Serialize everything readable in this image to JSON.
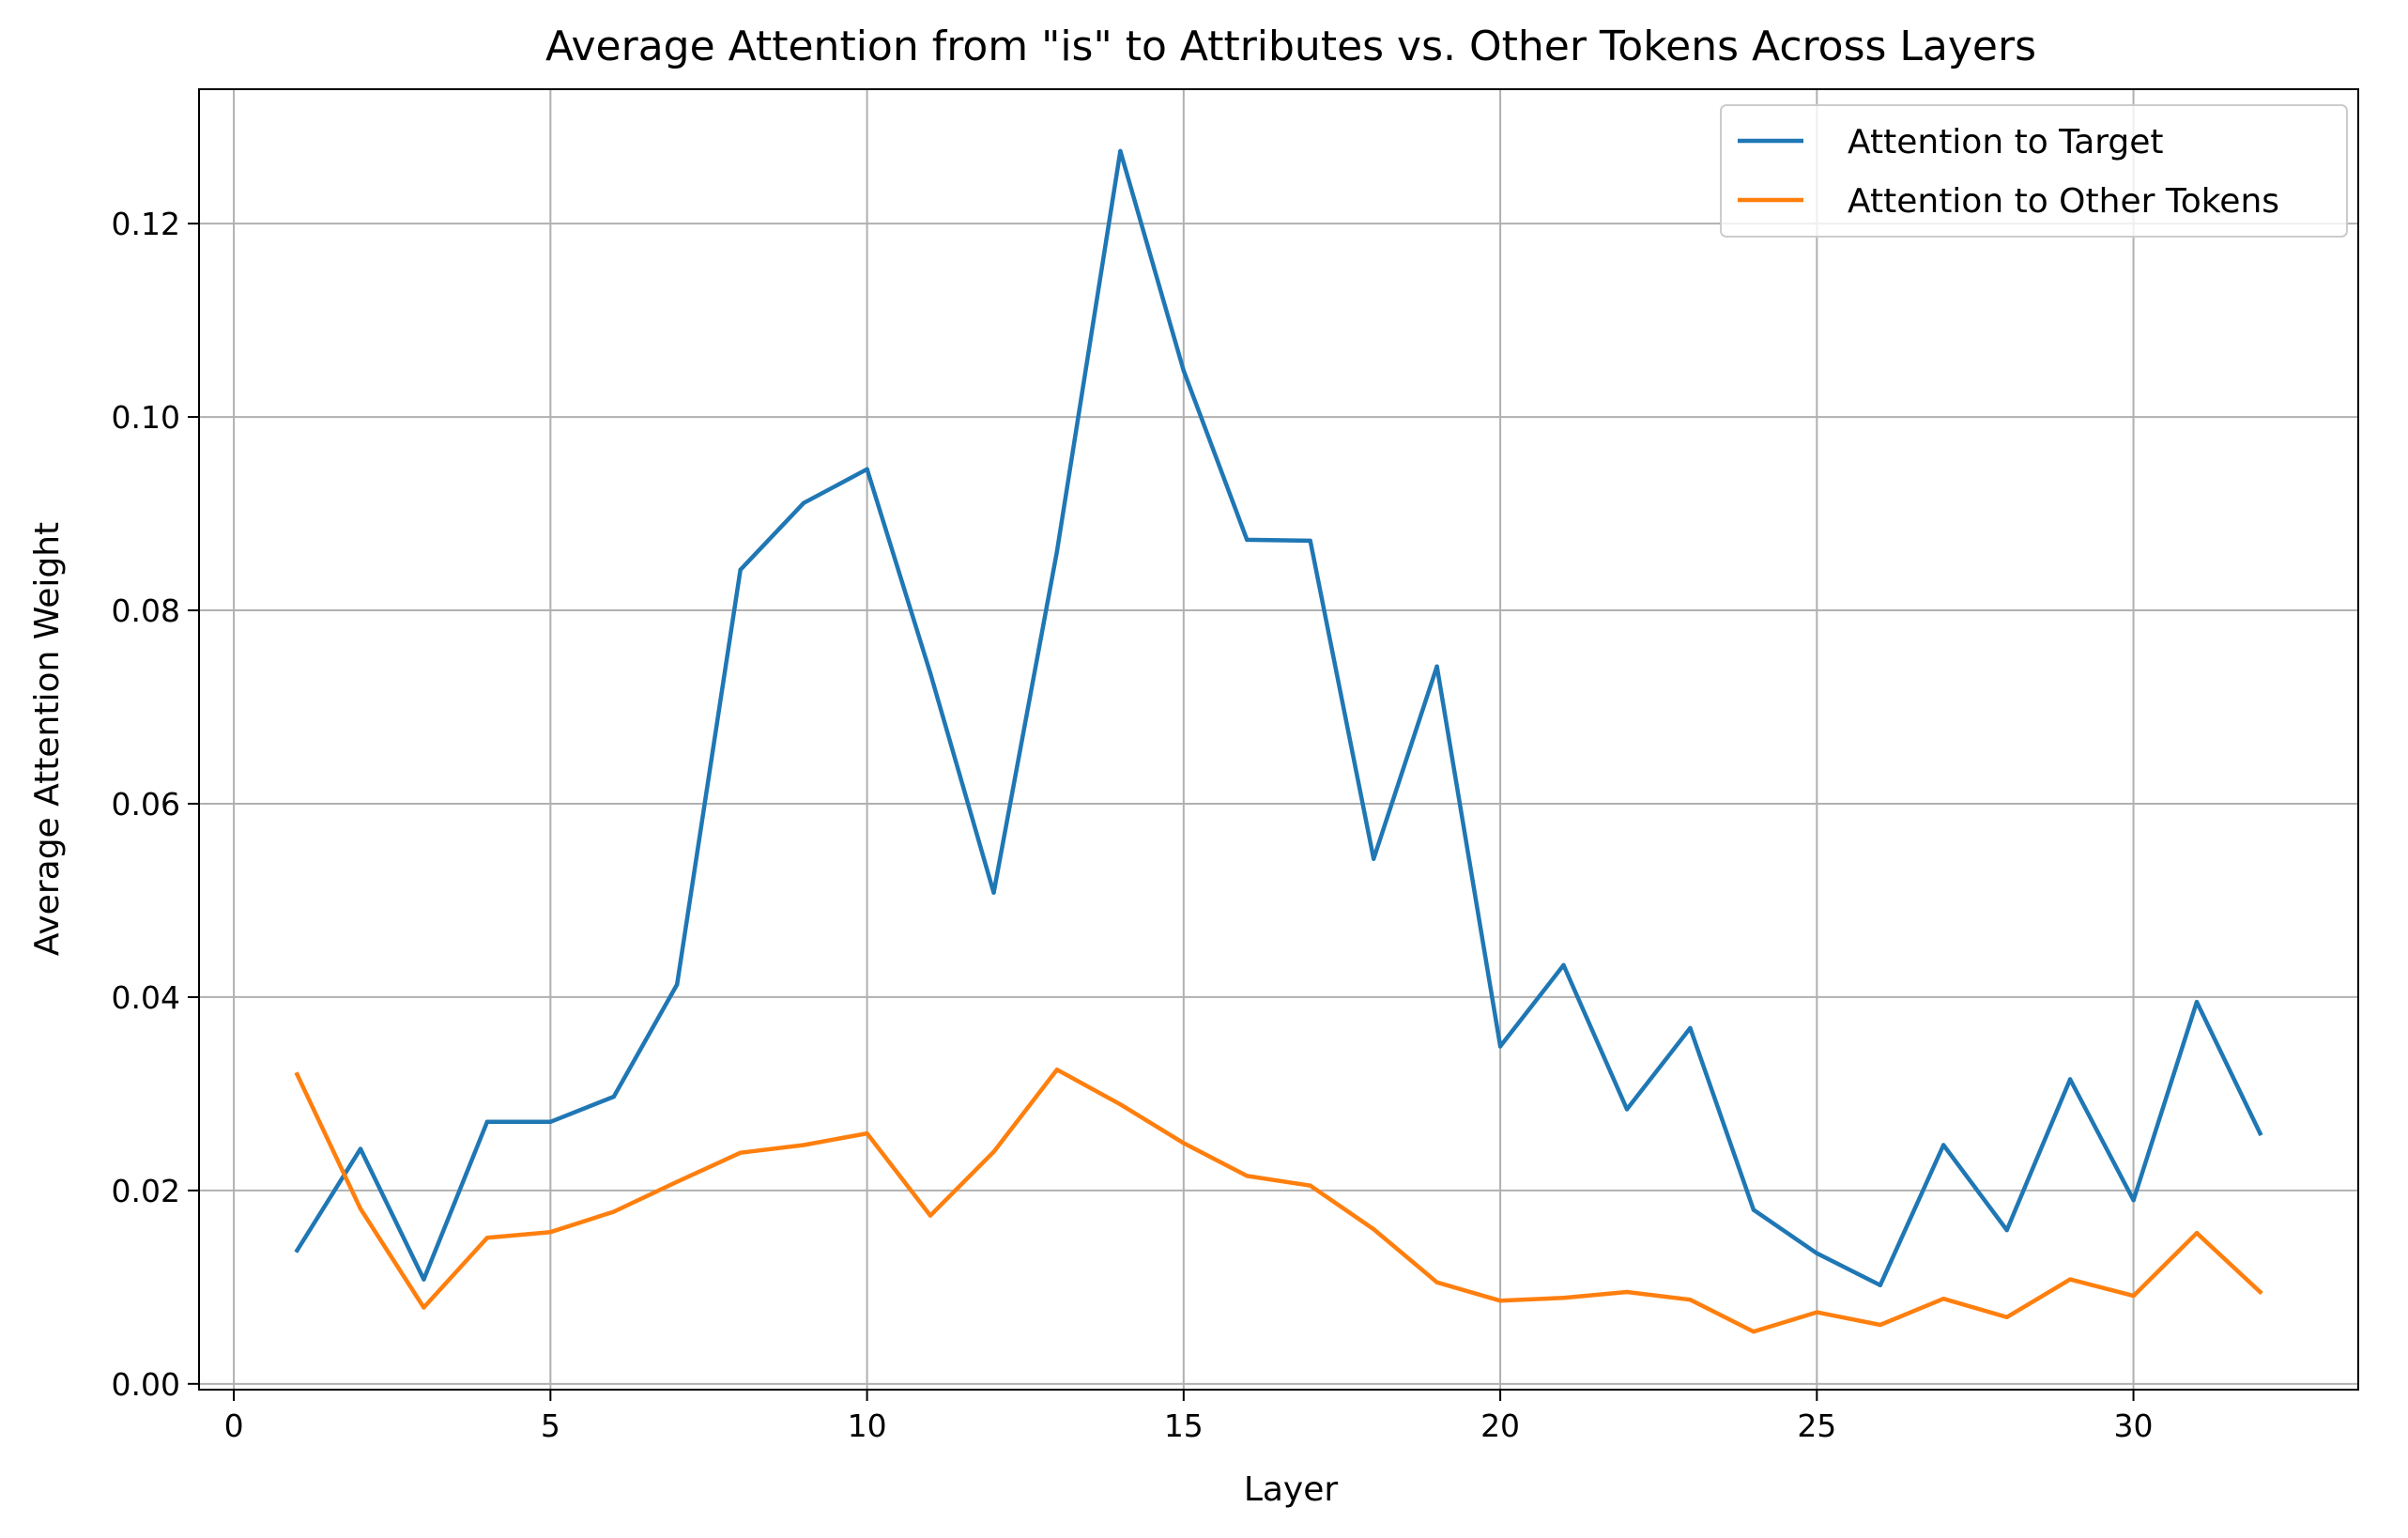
{
  "chart_data": {
    "type": "line",
    "title": "Average Attention from \"is\" to Attributes vs. Other Tokens Across Layers",
    "xlabel": "Layer",
    "ylabel": "Average Attention Weight",
    "xlim": [
      -0.55,
      33.55
    ],
    "ylim": [
      -0.0006,
      0.1339
    ],
    "xticks": [
      0,
      5,
      10,
      15,
      20,
      25,
      30
    ],
    "xtick_labels": [
      "0",
      "5",
      "10",
      "15",
      "20",
      "25",
      "30"
    ],
    "yticks": [
      0,
      0.02,
      0.04,
      0.06,
      0.08,
      0.1,
      0.12
    ],
    "ytick_labels": [
      "0.00",
      "0.02",
      "0.04",
      "0.06",
      "0.08",
      "0.10",
      "0.12"
    ],
    "grid": true,
    "legend_position": "top-right",
    "x": [
      1,
      2,
      3,
      4,
      5,
      6,
      7,
      8,
      9,
      10,
      11,
      12,
      13,
      14,
      15,
      16,
      17,
      18,
      19,
      20,
      21,
      22,
      23,
      24,
      25,
      26,
      27,
      28,
      29,
      30,
      31,
      32
    ],
    "series": [
      {
        "name": "Attention to Target",
        "color": "#1f77b4",
        "values": [
          0.0138,
          0.0243,
          0.0108,
          0.0271,
          0.0271,
          0.0297,
          0.0413,
          0.0842,
          0.0911,
          0.0946,
          0.0735,
          0.0508,
          0.0861,
          0.1275,
          0.1048,
          0.0873,
          0.0872,
          0.0543,
          0.0742,
          0.0349,
          0.0433,
          0.0284,
          0.0368,
          0.018,
          0.0135,
          0.0102,
          0.0247,
          0.0159,
          0.0315,
          0.019,
          0.0395,
          0.0259
        ]
      },
      {
        "name": "Attention to Other Tokens",
        "color": "#ff7f0e",
        "values": [
          0.032,
          0.0181,
          0.0079,
          0.0151,
          0.0157,
          0.0178,
          0.0209,
          0.0239,
          0.0247,
          0.0259,
          0.0174,
          0.024,
          0.0325,
          0.0289,
          0.0249,
          0.0215,
          0.0205,
          0.016,
          0.0105,
          0.0086,
          0.0089,
          0.0095,
          0.0087,
          0.0054,
          0.0074,
          0.0061,
          0.0088,
          0.0069,
          0.0108,
          0.0091,
          0.0156,
          0.0095
        ]
      }
    ]
  }
}
